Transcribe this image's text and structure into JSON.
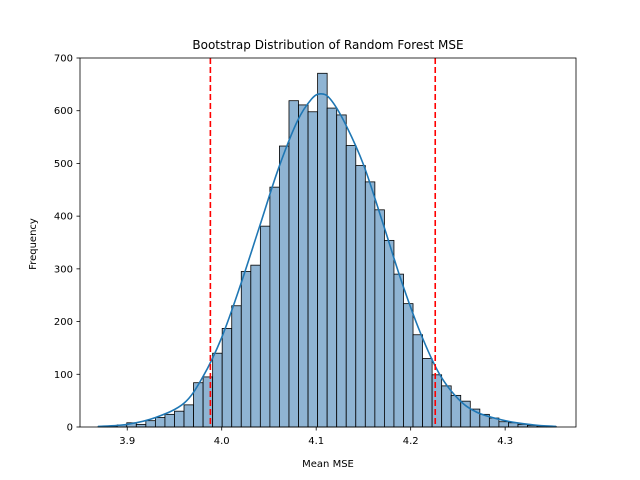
{
  "chart_data": {
    "type": "bar",
    "title": "Bootstrap Distribution of Random Forest MSE",
    "xlabel": "Mean MSE",
    "ylabel": "Frequency",
    "xlim": [
      3.85,
      4.375
    ],
    "ylim": [
      0,
      700
    ],
    "x_ticks": [
      "3.9",
      "4.0",
      "4.1",
      "4.2",
      "4.3"
    ],
    "y_ticks": [
      "0",
      "100",
      "200",
      "300",
      "400",
      "500",
      "600",
      "700"
    ],
    "bin_width": 0.0101,
    "bin_starts": [
      3.8692,
      3.8793,
      3.8894,
      3.8995,
      3.9096,
      3.9197,
      3.9298,
      3.9399,
      3.95,
      3.9601,
      3.9702,
      3.9803,
      3.9904,
      4.0005,
      4.0106,
      4.0207,
      4.0308,
      4.0409,
      4.051,
      4.0611,
      4.0712,
      4.0813,
      4.0914,
      4.1015,
      4.1116,
      4.1217,
      4.1318,
      4.1419,
      4.152,
      4.1621,
      4.1722,
      4.1823,
      4.1924,
      4.2025,
      4.2126,
      4.2227,
      4.2328,
      4.2429,
      4.253,
      4.2631,
      4.2732,
      4.2833,
      4.2934,
      4.3035,
      4.3136,
      4.3237,
      4.3338,
      4.3439
    ],
    "values": [
      1,
      2,
      4,
      8,
      5,
      12,
      18,
      24,
      30,
      42,
      84,
      95,
      140,
      187,
      230,
      295,
      307,
      381,
      455,
      533,
      619,
      611,
      598,
      671,
      605,
      592,
      534,
      496,
      465,
      412,
      354,
      290,
      234,
      175,
      130,
      99,
      78,
      60,
      49,
      34,
      24,
      17,
      10,
      8,
      5,
      3,
      2,
      1
    ],
    "kde": {
      "name": "",
      "color": "#1f77b4",
      "x": [
        3.869,
        3.9,
        3.93,
        3.96,
        3.98,
        4.0,
        4.02,
        4.04,
        4.06,
        4.08,
        4.095,
        4.105,
        4.115,
        4.13,
        4.15,
        4.17,
        4.19,
        4.21,
        4.23,
        4.25,
        4.27,
        4.3,
        4.33,
        4.354
      ],
      "y": [
        1,
        5,
        18,
        45,
        95,
        170,
        270,
        380,
        490,
        580,
        622,
        632,
        622,
        578,
        498,
        390,
        278,
        180,
        102,
        54,
        28,
        12,
        4,
        1
      ]
    },
    "ci_lines": {
      "color": "#ff0000",
      "x": [
        3.988,
        4.226
      ]
    },
    "bar_color": "#8fb4d3",
    "bar_edge": "#000000"
  }
}
